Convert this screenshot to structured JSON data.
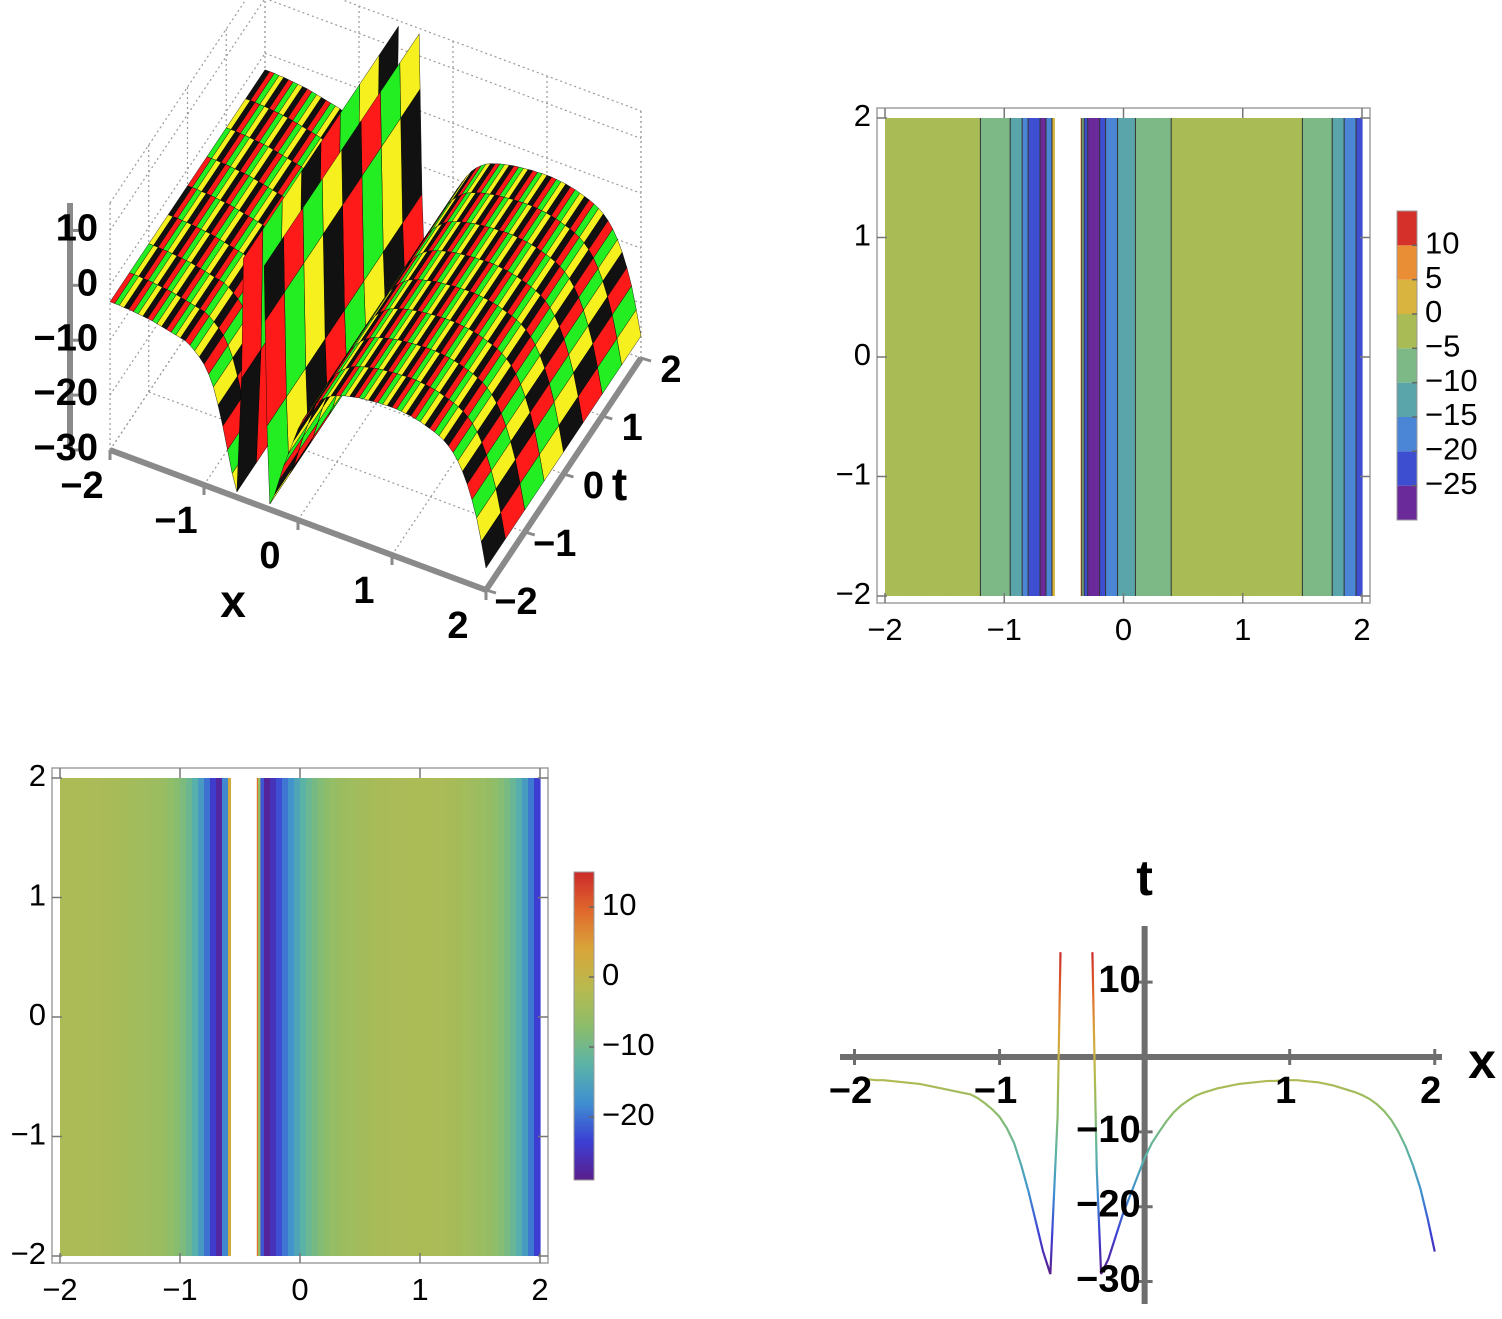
{
  "chart_data": [
    {
      "type": "surface3d",
      "x": [
        -2,
        -1.95,
        -1.9,
        -1.85,
        -1.8,
        -1.75,
        -1.7,
        -1.65,
        -1.6,
        -1.55,
        -1.5,
        -1.45,
        -1.4,
        -1.35,
        -1.3,
        -1.25,
        -1.2,
        -1.15,
        -1.1,
        -1.05,
        -1,
        -0.95,
        -0.9,
        -0.85,
        -0.8,
        -0.75,
        -0.7,
        -0.65,
        -0.6,
        -0.58,
        -0.55,
        -0.36,
        -0.35,
        -0.33,
        -0.3,
        -0.25,
        -0.2,
        -0.15,
        -0.1,
        -0.05,
        0,
        0.05,
        0.1,
        0.15,
        0.2,
        0.25,
        0.3,
        0.35,
        0.4,
        0.45,
        0.5,
        0.55,
        0.6,
        0.65,
        0.7,
        0.75,
        0.8,
        0.85,
        0.9,
        0.95,
        1,
        1.05,
        1.1,
        1.15,
        1.2,
        1.25,
        1.3,
        1.35,
        1.4,
        1.45,
        1.5,
        1.55,
        1.6,
        1.65,
        1.7,
        1.75,
        1.8,
        1.85,
        1.9,
        1.95,
        2
      ],
      "values": [
        -3,
        -3,
        -3,
        -3.1,
        -3.1,
        -3.2,
        -3.3,
        -3.4,
        -3.5,
        -3.6,
        -3.8,
        -4,
        -4.2,
        -4.4,
        -4.6,
        -4.8,
        -5,
        -5.5,
        -6.2,
        -7,
        -8,
        -9.5,
        -11.5,
        -14.5,
        -18,
        -22,
        -26,
        -29,
        -8,
        14,
        null,
        14,
        4,
        -15,
        -29,
        -27,
        -24,
        -21,
        -18.5,
        -16,
        -13.5,
        -11.5,
        -10,
        -8.6,
        -7.4,
        -6.5,
        -5.8,
        -5.2,
        -4.8,
        -4.5,
        -4.2,
        -4,
        -3.8,
        -3.6,
        -3.5,
        -3.4,
        -3.3,
        -3.2,
        -3.2,
        -3.1,
        -3.1,
        -3.1,
        -3.2,
        -3.3,
        -3.4,
        -3.6,
        -3.8,
        -4.1,
        -4.4,
        -4.7,
        -5.1,
        -5.6,
        -6.3,
        -7.2,
        -8.4,
        -10,
        -12,
        -14.5,
        -17.5,
        -21.5,
        -26
      ],
      "xlim": [
        -2,
        2
      ],
      "xticks": [
        {
          "value": -2,
          "label": "−2"
        },
        {
          "value": -1,
          "label": "−1"
        },
        0,
        1,
        2
      ],
      "tlim": [
        -2,
        2
      ],
      "tticks": [
        {
          "value": -2,
          "label": "−2"
        },
        {
          "value": -1,
          "label": "−1"
        },
        0,
        1,
        2
      ],
      "zlim": [
        -30,
        15
      ],
      "zticks": [
        {
          "value": -30,
          "label": "−30"
        },
        {
          "value": -20,
          "label": "−20"
        },
        {
          "value": -10,
          "label": "−10"
        },
        0,
        10
      ],
      "xlabel": "x",
      "tlabel": "t",
      "colors": [
        "#ff1a1a",
        "#22ee22",
        "#f5f01e",
        "#111111"
      ]
    },
    {
      "type": "contour",
      "x": [
        -2,
        -1.95,
        -1.9,
        -1.85,
        -1.8,
        -1.75,
        -1.7,
        -1.65,
        -1.6,
        -1.55,
        -1.5,
        -1.45,
        -1.4,
        -1.35,
        -1.3,
        -1.25,
        -1.2,
        -1.15,
        -1.1,
        -1.05,
        -1,
        -0.95,
        -0.9,
        -0.85,
        -0.8,
        -0.75,
        -0.7,
        -0.65,
        -0.6,
        -0.58,
        -0.55,
        -0.36,
        -0.35,
        -0.33,
        -0.3,
        -0.25,
        -0.2,
        -0.15,
        -0.1,
        -0.05,
        0,
        0.05,
        0.1,
        0.15,
        0.2,
        0.25,
        0.3,
        0.35,
        0.4,
        0.45,
        0.5,
        0.55,
        0.6,
        0.65,
        0.7,
        0.75,
        0.8,
        0.85,
        0.9,
        0.95,
        1,
        1.05,
        1.1,
        1.15,
        1.2,
        1.25,
        1.3,
        1.35,
        1.4,
        1.45,
        1.5,
        1.55,
        1.6,
        1.65,
        1.7,
        1.75,
        1.8,
        1.85,
        1.9,
        1.95,
        2
      ],
      "values": [
        -3,
        -3,
        -3,
        -3.1,
        -3.1,
        -3.2,
        -3.3,
        -3.4,
        -3.5,
        -3.6,
        -3.8,
        -4,
        -4.2,
        -4.4,
        -4.6,
        -4.8,
        -5,
        -5.5,
        -6.2,
        -7,
        -8,
        -9.5,
        -11.5,
        -14.5,
        -18,
        -22,
        -26,
        -29,
        -8,
        14,
        null,
        14,
        4,
        -15,
        -29,
        -27,
        -24,
        -21,
        -18.5,
        -16,
        -13.5,
        -11.5,
        -10,
        -8.6,
        -7.4,
        -6.5,
        -5.8,
        -5.2,
        -4.8,
        -4.5,
        -4.2,
        -4,
        -3.8,
        -3.6,
        -3.5,
        -3.4,
        -3.3,
        -3.2,
        -3.2,
        -3.1,
        -3.1,
        -3.1,
        -3.2,
        -3.3,
        -3.4,
        -3.6,
        -3.8,
        -4.1,
        -4.4,
        -4.7,
        -5.1,
        -5.6,
        -6.3,
        -7.2,
        -8.4,
        -10,
        -12,
        -14.5,
        -17.5,
        -21.5,
        -26
      ],
      "xlim": [
        -2,
        2
      ],
      "xticks": [
        {
          "value": -2,
          "label": "−2"
        },
        {
          "value": -1,
          "label": "−1"
        },
        0,
        1,
        2
      ],
      "ylim": [
        -2,
        2
      ],
      "yticks": [
        {
          "value": -2,
          "label": "−2"
        },
        {
          "value": -1,
          "label": "−1"
        },
        0,
        1,
        2
      ],
      "colorbar_lim": [
        -30,
        15
      ],
      "colorbar_ticks": [
        {
          "value": -25,
          "label": "−25"
        },
        {
          "value": -20,
          "label": "−20"
        },
        {
          "value": -15,
          "label": "−15"
        },
        {
          "value": -10,
          "label": "−10"
        },
        {
          "value": -5,
          "label": "−5"
        },
        0,
        5,
        10
      ],
      "colors": [
        "#6a2a9a",
        "#3d4fd0",
        "#4b86d6",
        "#5aa5aa",
        "#7db987",
        "#a8bb55",
        "#d9b43e",
        "#ea8e35",
        "#d6302a"
      ]
    },
    {
      "type": "density",
      "x": [
        -2,
        -1.95,
        -1.9,
        -1.85,
        -1.8,
        -1.75,
        -1.7,
        -1.65,
        -1.6,
        -1.55,
        -1.5,
        -1.45,
        -1.4,
        -1.35,
        -1.3,
        -1.25,
        -1.2,
        -1.15,
        -1.1,
        -1.05,
        -1,
        -0.95,
        -0.9,
        -0.85,
        -0.8,
        -0.75,
        -0.7,
        -0.65,
        -0.6,
        -0.58,
        -0.55,
        -0.36,
        -0.35,
        -0.33,
        -0.3,
        -0.25,
        -0.2,
        -0.15,
        -0.1,
        -0.05,
        0,
        0.05,
        0.1,
        0.15,
        0.2,
        0.25,
        0.3,
        0.35,
        0.4,
        0.45,
        0.5,
        0.55,
        0.6,
        0.65,
        0.7,
        0.75,
        0.8,
        0.85,
        0.9,
        0.95,
        1,
        1.05,
        1.1,
        1.15,
        1.2,
        1.25,
        1.3,
        1.35,
        1.4,
        1.45,
        1.5,
        1.55,
        1.6,
        1.65,
        1.7,
        1.75,
        1.8,
        1.85,
        1.9,
        1.95,
        2
      ],
      "values": [
        -3,
        -3,
        -3,
        -3.1,
        -3.1,
        -3.2,
        -3.3,
        -3.4,
        -3.5,
        -3.6,
        -3.8,
        -4,
        -4.2,
        -4.4,
        -4.6,
        -4.8,
        -5,
        -5.5,
        -6.2,
        -7,
        -8,
        -9.5,
        -11.5,
        -14.5,
        -18,
        -22,
        -26,
        -29,
        -8,
        14,
        null,
        14,
        4,
        -15,
        -29,
        -27,
        -24,
        -21,
        -18.5,
        -16,
        -13.5,
        -11.5,
        -10,
        -8.6,
        -7.4,
        -6.5,
        -5.8,
        -5.2,
        -4.8,
        -4.5,
        -4.2,
        -4,
        -3.8,
        -3.6,
        -3.5,
        -3.4,
        -3.3,
        -3.2,
        -3.2,
        -3.1,
        -3.1,
        -3.1,
        -3.2,
        -3.3,
        -3.4,
        -3.6,
        -3.8,
        -4.1,
        -4.4,
        -4.7,
        -5.1,
        -5.6,
        -6.3,
        -7.2,
        -8.4,
        -10,
        -12,
        -14.5,
        -17.5,
        -21.5,
        -26
      ],
      "xlim": [
        -2,
        2
      ],
      "xticks": [
        {
          "value": -2,
          "label": "−2"
        },
        {
          "value": -1,
          "label": "−1"
        },
        0,
        1,
        2
      ],
      "ylim": [
        -2,
        2
      ],
      "yticks": [
        {
          "value": -2,
          "label": "−2"
        },
        {
          "value": -1,
          "label": "−1"
        },
        0,
        1,
        2
      ],
      "colorbar_lim": [
        -29,
        15
      ],
      "colorbar_ticks": [
        {
          "value": -20,
          "label": "−20"
        },
        {
          "value": -10,
          "label": "−10"
        },
        0,
        10
      ],
      "colormap": [
        "#5a1e8c",
        "#3c3fd4",
        "#3f8fd0",
        "#5bb3a6",
        "#8dbd6a",
        "#b8ba4e",
        "#d9a53a",
        "#e0682c",
        "#cc2a2a"
      ]
    },
    {
      "type": "line",
      "x": [
        -2,
        -1.95,
        -1.9,
        -1.85,
        -1.8,
        -1.75,
        -1.7,
        -1.65,
        -1.6,
        -1.55,
        -1.5,
        -1.45,
        -1.4,
        -1.35,
        -1.3,
        -1.25,
        -1.2,
        -1.15,
        -1.1,
        -1.05,
        -1,
        -0.95,
        -0.9,
        -0.85,
        -0.8,
        -0.75,
        -0.7,
        -0.65,
        -0.6,
        -0.58,
        -0.55,
        -0.36,
        -0.35,
        -0.33,
        -0.3,
        -0.25,
        -0.2,
        -0.15,
        -0.1,
        -0.05,
        0,
        0.05,
        0.1,
        0.15,
        0.2,
        0.25,
        0.3,
        0.35,
        0.4,
        0.45,
        0.5,
        0.55,
        0.6,
        0.65,
        0.7,
        0.75,
        0.8,
        0.85,
        0.9,
        0.95,
        1,
        1.05,
        1.1,
        1.15,
        1.2,
        1.25,
        1.3,
        1.35,
        1.4,
        1.45,
        1.5,
        1.55,
        1.6,
        1.65,
        1.7,
        1.75,
        1.8,
        1.85,
        1.9,
        1.95,
        2
      ],
      "values": [
        -3,
        -3,
        -3,
        -3.1,
        -3.1,
        -3.2,
        -3.3,
        -3.4,
        -3.5,
        -3.6,
        -3.8,
        -4,
        -4.2,
        -4.4,
        -4.6,
        -4.8,
        -5,
        -5.5,
        -6.2,
        -7,
        -8,
        -9.5,
        -11.5,
        -14.5,
        -18,
        -22,
        -26,
        -29,
        -8,
        14,
        null,
        14,
        4,
        -15,
        -29,
        -27,
        -24,
        -21,
        -18.5,
        -16,
        -13.5,
        -11.5,
        -10,
        -8.6,
        -7.4,
        -6.5,
        -5.8,
        -5.2,
        -4.8,
        -4.5,
        -4.2,
        -4,
        -3.8,
        -3.6,
        -3.5,
        -3.4,
        -3.3,
        -3.2,
        -3.2,
        -3.1,
        -3.1,
        -3.1,
        -3.2,
        -3.3,
        -3.4,
        -3.6,
        -3.8,
        -4.1,
        -4.4,
        -4.7,
        -5.1,
        -5.6,
        -6.3,
        -7.2,
        -8.4,
        -10,
        -12,
        -14.5,
        -17.5,
        -21.5,
        -26
      ],
      "xlim": [
        -2.1,
        2.05
      ],
      "xticks": [
        {
          "value": -2,
          "label": "−2"
        },
        {
          "value": -1,
          "label": "−1"
        },
        1,
        2
      ],
      "ylim": [
        -33,
        17.5
      ],
      "yticks": [
        {
          "value": -30,
          "label": "−30"
        },
        {
          "value": -20,
          "label": "−20"
        },
        {
          "value": -10,
          "label": "−10"
        },
        10
      ],
      "xlabel": "x",
      "ylabel": "t",
      "colormap": [
        "#5a1e8c",
        "#3c3fd4",
        "#3f8fd0",
        "#5bb3a6",
        "#8dbd6a",
        "#b8ba4e",
        "#d9a53a",
        "#e0682c",
        "#cc2a2a"
      ]
    }
  ]
}
